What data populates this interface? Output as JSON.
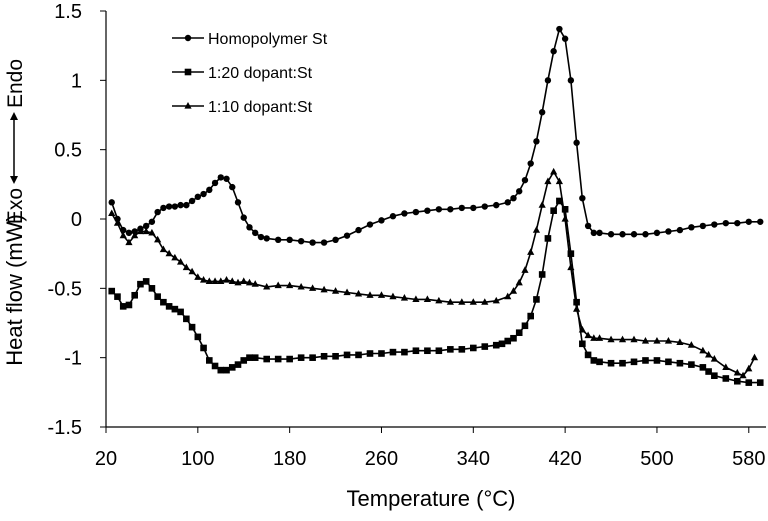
{
  "chart_data": {
    "type": "line",
    "xlabel": "Temperature (°C)",
    "ylabel": "Heat flow (mW)",
    "annotations": {
      "top": "Endo",
      "bottom": "Exo"
    },
    "xlim": [
      20,
      595
    ],
    "ylim": [
      -1.5,
      1.5
    ],
    "xticks": [
      20,
      100,
      180,
      260,
      340,
      420,
      500,
      580
    ],
    "yticks": [
      1.5,
      1,
      0.5,
      0,
      -0.5,
      -1,
      -1.5
    ],
    "ytick_labels": [
      "1.5",
      "1",
      "0.5",
      "0",
      "-0.5",
      "-1",
      "-1.5"
    ],
    "legend_position": "top-left",
    "grid": false,
    "series": [
      {
        "name": "Homopolymer St",
        "marker": "circle",
        "color": "#000000",
        "points": [
          [
            25,
            0.12
          ],
          [
            30,
            0.0
          ],
          [
            35,
            -0.08
          ],
          [
            40,
            -0.1
          ],
          [
            45,
            -0.09
          ],
          [
            50,
            -0.07
          ],
          [
            55,
            -0.05
          ],
          [
            60,
            -0.02
          ],
          [
            65,
            0.05
          ],
          [
            70,
            0.08
          ],
          [
            75,
            0.09
          ],
          [
            80,
            0.09
          ],
          [
            85,
            0.1
          ],
          [
            90,
            0.1
          ],
          [
            95,
            0.13
          ],
          [
            100,
            0.16
          ],
          [
            105,
            0.18
          ],
          [
            110,
            0.21
          ],
          [
            115,
            0.26
          ],
          [
            120,
            0.3
          ],
          [
            125,
            0.29
          ],
          [
            130,
            0.23
          ],
          [
            135,
            0.12
          ],
          [
            140,
            0.01
          ],
          [
            145,
            -0.06
          ],
          [
            150,
            -0.1
          ],
          [
            155,
            -0.13
          ],
          [
            160,
            -0.14
          ],
          [
            170,
            -0.15
          ],
          [
            180,
            -0.15
          ],
          [
            190,
            -0.16
          ],
          [
            200,
            -0.17
          ],
          [
            210,
            -0.17
          ],
          [
            220,
            -0.15
          ],
          [
            230,
            -0.12
          ],
          [
            240,
            -0.08
          ],
          [
            250,
            -0.04
          ],
          [
            260,
            -0.01
          ],
          [
            270,
            0.02
          ],
          [
            280,
            0.04
          ],
          [
            290,
            0.05
          ],
          [
            300,
            0.06
          ],
          [
            310,
            0.07
          ],
          [
            320,
            0.07
          ],
          [
            330,
            0.08
          ],
          [
            340,
            0.08
          ],
          [
            350,
            0.09
          ],
          [
            360,
            0.1
          ],
          [
            370,
            0.12
          ],
          [
            375,
            0.15
          ],
          [
            380,
            0.2
          ],
          [
            385,
            0.28
          ],
          [
            390,
            0.4
          ],
          [
            395,
            0.56
          ],
          [
            400,
            0.77
          ],
          [
            405,
            1.0
          ],
          [
            410,
            1.21
          ],
          [
            415,
            1.37
          ],
          [
            420,
            1.3
          ],
          [
            425,
            1.0
          ],
          [
            430,
            0.55
          ],
          [
            435,
            0.15
          ],
          [
            440,
            -0.05
          ],
          [
            445,
            -0.1
          ],
          [
            450,
            -0.1
          ],
          [
            460,
            -0.11
          ],
          [
            470,
            -0.11
          ],
          [
            480,
            -0.11
          ],
          [
            490,
            -0.11
          ],
          [
            500,
            -0.1
          ],
          [
            510,
            -0.09
          ],
          [
            520,
            -0.08
          ],
          [
            530,
            -0.06
          ],
          [
            540,
            -0.05
          ],
          [
            550,
            -0.04
          ],
          [
            560,
            -0.03
          ],
          [
            570,
            -0.03
          ],
          [
            580,
            -0.02
          ],
          [
            590,
            -0.02
          ]
        ]
      },
      {
        "name": "1:20 dopant:St",
        "marker": "square",
        "color": "#000000",
        "points": [
          [
            25,
            -0.52
          ],
          [
            30,
            -0.56
          ],
          [
            35,
            -0.63
          ],
          [
            40,
            -0.62
          ],
          [
            45,
            -0.55
          ],
          [
            50,
            -0.47
          ],
          [
            55,
            -0.45
          ],
          [
            60,
            -0.5
          ],
          [
            65,
            -0.56
          ],
          [
            70,
            -0.6
          ],
          [
            75,
            -0.63
          ],
          [
            80,
            -0.65
          ],
          [
            85,
            -0.67
          ],
          [
            90,
            -0.72
          ],
          [
            95,
            -0.78
          ],
          [
            100,
            -0.85
          ],
          [
            105,
            -0.93
          ],
          [
            110,
            -1.02
          ],
          [
            115,
            -1.06
          ],
          [
            120,
            -1.09
          ],
          [
            125,
            -1.09
          ],
          [
            130,
            -1.07
          ],
          [
            135,
            -1.05
          ],
          [
            140,
            -1.02
          ],
          [
            145,
            -1.0
          ],
          [
            150,
            -1.0
          ],
          [
            160,
            -1.01
          ],
          [
            170,
            -1.01
          ],
          [
            180,
            -1.01
          ],
          [
            190,
            -1.0
          ],
          [
            200,
            -1.0
          ],
          [
            210,
            -0.99
          ],
          [
            220,
            -0.99
          ],
          [
            230,
            -0.98
          ],
          [
            240,
            -0.98
          ],
          [
            250,
            -0.97
          ],
          [
            260,
            -0.97
          ],
          [
            270,
            -0.96
          ],
          [
            280,
            -0.96
          ],
          [
            290,
            -0.95
          ],
          [
            300,
            -0.95
          ],
          [
            310,
            -0.95
          ],
          [
            320,
            -0.94
          ],
          [
            330,
            -0.94
          ],
          [
            340,
            -0.93
          ],
          [
            350,
            -0.92
          ],
          [
            360,
            -0.91
          ],
          [
            365,
            -0.9
          ],
          [
            370,
            -0.88
          ],
          [
            375,
            -0.86
          ],
          [
            380,
            -0.82
          ],
          [
            385,
            -0.77
          ],
          [
            390,
            -0.7
          ],
          [
            395,
            -0.58
          ],
          [
            400,
            -0.4
          ],
          [
            405,
            -0.14
          ],
          [
            410,
            0.06
          ],
          [
            415,
            0.13
          ],
          [
            420,
            0.07
          ],
          [
            425,
            -0.25
          ],
          [
            430,
            -0.6
          ],
          [
            435,
            -0.9
          ],
          [
            440,
            -0.98
          ],
          [
            445,
            -1.02
          ],
          [
            450,
            -1.03
          ],
          [
            460,
            -1.04
          ],
          [
            470,
            -1.04
          ],
          [
            480,
            -1.03
          ],
          [
            490,
            -1.02
          ],
          [
            500,
            -1.02
          ],
          [
            510,
            -1.03
          ],
          [
            520,
            -1.04
          ],
          [
            530,
            -1.05
          ],
          [
            540,
            -1.07
          ],
          [
            545,
            -1.1
          ],
          [
            550,
            -1.13
          ],
          [
            560,
            -1.15
          ],
          [
            570,
            -1.17
          ],
          [
            580,
            -1.18
          ],
          [
            590,
            -1.18
          ]
        ]
      },
      {
        "name": "1:10 dopant:St",
        "marker": "triangle",
        "color": "#000000",
        "points": [
          [
            25,
            0.04
          ],
          [
            30,
            -0.03
          ],
          [
            35,
            -0.12
          ],
          [
            40,
            -0.17
          ],
          [
            45,
            -0.12
          ],
          [
            50,
            -0.09
          ],
          [
            55,
            -0.09
          ],
          [
            60,
            -0.1
          ],
          [
            65,
            -0.15
          ],
          [
            70,
            -0.22
          ],
          [
            75,
            -0.25
          ],
          [
            80,
            -0.28
          ],
          [
            85,
            -0.31
          ],
          [
            90,
            -0.35
          ],
          [
            95,
            -0.38
          ],
          [
            100,
            -0.42
          ],
          [
            105,
            -0.44
          ],
          [
            110,
            -0.45
          ],
          [
            115,
            -0.45
          ],
          [
            120,
            -0.45
          ],
          [
            125,
            -0.44
          ],
          [
            130,
            -0.45
          ],
          [
            135,
            -0.46
          ],
          [
            140,
            -0.45
          ],
          [
            145,
            -0.46
          ],
          [
            150,
            -0.47
          ],
          [
            160,
            -0.49
          ],
          [
            170,
            -0.48
          ],
          [
            180,
            -0.48
          ],
          [
            190,
            -0.49
          ],
          [
            200,
            -0.5
          ],
          [
            210,
            -0.51
          ],
          [
            220,
            -0.52
          ],
          [
            230,
            -0.53
          ],
          [
            240,
            -0.54
          ],
          [
            250,
            -0.55
          ],
          [
            260,
            -0.55
          ],
          [
            270,
            -0.56
          ],
          [
            280,
            -0.57
          ],
          [
            290,
            -0.58
          ],
          [
            300,
            -0.58
          ],
          [
            310,
            -0.59
          ],
          [
            320,
            -0.6
          ],
          [
            330,
            -0.6
          ],
          [
            340,
            -0.6
          ],
          [
            350,
            -0.6
          ],
          [
            360,
            -0.59
          ],
          [
            370,
            -0.56
          ],
          [
            375,
            -0.52
          ],
          [
            380,
            -0.46
          ],
          [
            385,
            -0.37
          ],
          [
            390,
            -0.24
          ],
          [
            395,
            -0.08
          ],
          [
            400,
            0.1
          ],
          [
            405,
            0.27
          ],
          [
            410,
            0.34
          ],
          [
            415,
            0.27
          ],
          [
            420,
            0.0
          ],
          [
            425,
            -0.35
          ],
          [
            430,
            -0.65
          ],
          [
            435,
            -0.8
          ],
          [
            440,
            -0.84
          ],
          [
            445,
            -0.86
          ],
          [
            450,
            -0.86
          ],
          [
            460,
            -0.87
          ],
          [
            470,
            -0.87
          ],
          [
            480,
            -0.87
          ],
          [
            490,
            -0.88
          ],
          [
            500,
            -0.88
          ],
          [
            510,
            -0.88
          ],
          [
            520,
            -0.89
          ],
          [
            530,
            -0.91
          ],
          [
            540,
            -0.95
          ],
          [
            545,
            -0.98
          ],
          [
            550,
            -1.01
          ],
          [
            560,
            -1.07
          ],
          [
            570,
            -1.11
          ],
          [
            575,
            -1.13
          ],
          [
            580,
            -1.08
          ],
          [
            585,
            -1.0
          ]
        ]
      }
    ]
  }
}
